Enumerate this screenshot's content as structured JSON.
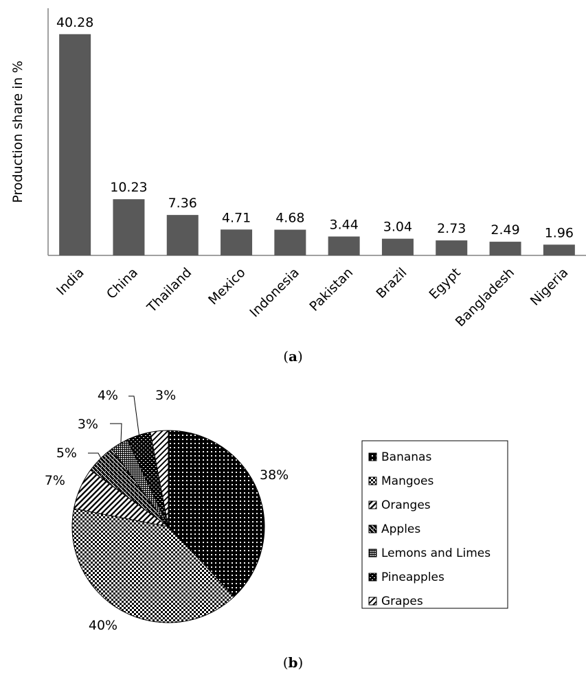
{
  "chart_data": [
    {
      "type": "bar",
      "title": "",
      "xlabel": "",
      "ylabel": "Production share in %",
      "categories": [
        "India",
        "China",
        "Thailand",
        "Mexico",
        "Indonesia",
        "Pakistan",
        "Brazil",
        "Egypt",
        "Bangladesh",
        "Nigeria"
      ],
      "values": [
        40.28,
        10.23,
        7.36,
        4.71,
        4.68,
        3.44,
        3.04,
        2.73,
        2.49,
        1.96
      ],
      "ylim": [
        0,
        45
      ],
      "grid": false,
      "color": "#595959"
    },
    {
      "type": "pie",
      "title": "",
      "legend_position": "right",
      "slices": [
        {
          "label": "Bananas",
          "value": 38,
          "text": "38%"
        },
        {
          "label": "Mangoes",
          "value": 40,
          "text": "40%"
        },
        {
          "label": "Oranges",
          "value": 7,
          "text": "7%"
        },
        {
          "label": "Apples",
          "value": 5,
          "text": "5%"
        },
        {
          "label": "Lemons and Limes",
          "value": 3,
          "text": "3%"
        },
        {
          "label": "Pineapples",
          "value": 4,
          "text": "4%"
        },
        {
          "label": "Grapes",
          "value": 3,
          "text": "3%"
        }
      ]
    }
  ],
  "captions": {
    "a_open": "(",
    "a_letter": "a",
    "a_close": ")",
    "b_open": "(",
    "b_letter": "b",
    "b_close": ")"
  }
}
